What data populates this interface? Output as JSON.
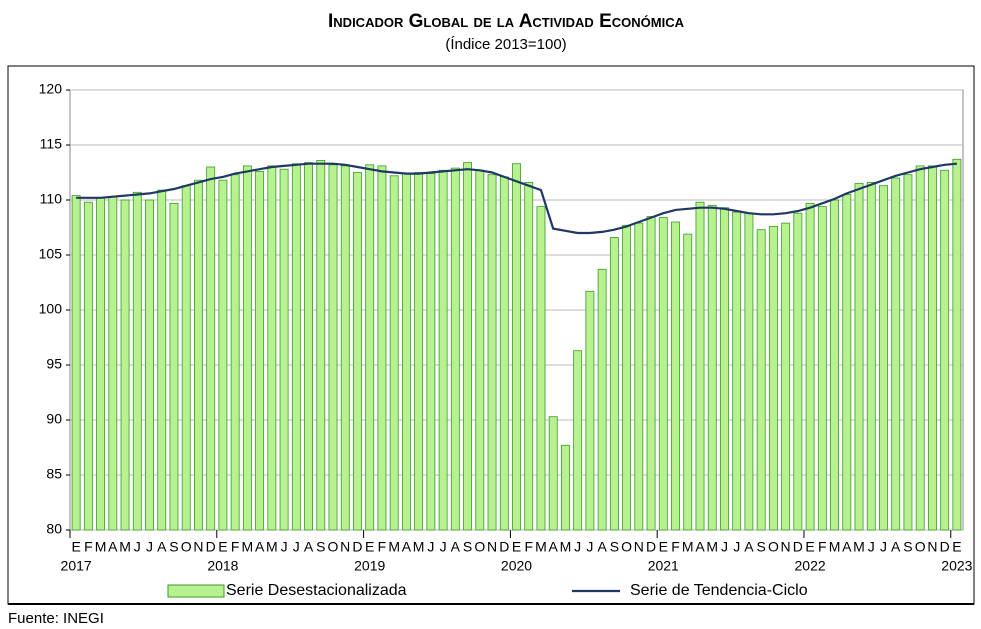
{
  "chart_data": {
    "type": "bar",
    "title": "Indicador Global de la Actividad Económica",
    "subtitle": "(Índice 2013=100)",
    "source": "Fuente: INEGI",
    "categories": [
      "E",
      "F",
      "M",
      "A",
      "M",
      "J",
      "J",
      "A",
      "S",
      "O",
      "N",
      "D",
      "E",
      "F",
      "M",
      "A",
      "M",
      "J",
      "J",
      "A",
      "S",
      "O",
      "N",
      "D",
      "E",
      "F",
      "M",
      "A",
      "M",
      "J",
      "J",
      "A",
      "S",
      "O",
      "N",
      "D",
      "E",
      "F",
      "M",
      "A",
      "M",
      "J",
      "J",
      "A",
      "S",
      "O",
      "N",
      "D",
      "E",
      "F",
      "M",
      "A",
      "M",
      "J",
      "J",
      "A",
      "S",
      "O",
      "N",
      "D",
      "E",
      "F",
      "M",
      "A",
      "M",
      "J",
      "J",
      "A",
      "S",
      "O",
      "N",
      "D",
      "E"
    ],
    "years": [
      "2017",
      "2018",
      "2019",
      "2020",
      "2021",
      "2022",
      "2023"
    ],
    "series": [
      {
        "name": "Serie Desestacionalizada",
        "type": "bar",
        "color": "#b8f290",
        "edge": "#3a9a2a",
        "values": [
          110.4,
          109.8,
          110.2,
          110.3,
          110.0,
          110.7,
          110.0,
          110.9,
          109.7,
          111.3,
          111.8,
          113.0,
          111.8,
          112.3,
          113.1,
          112.6,
          113.1,
          112.8,
          113.3,
          113.4,
          113.6,
          113.2,
          113.1,
          112.5,
          113.2,
          113.1,
          112.2,
          112.4,
          112.5,
          112.4,
          112.7,
          112.9,
          113.4,
          112.7,
          112.3,
          112.1,
          113.3,
          111.6,
          109.4,
          90.3,
          87.7,
          96.3,
          101.7,
          103.7,
          106.6,
          107.7,
          107.9,
          108.5,
          108.4,
          108.0,
          106.9,
          109.8,
          109.5,
          109.3,
          108.9,
          108.8,
          107.3,
          107.6,
          107.9,
          108.8,
          109.7,
          109.4,
          110.0,
          110.5,
          111.5,
          111.6,
          111.3,
          112.0,
          112.3,
          113.1,
          113.1,
          112.7,
          113.7
        ]
      },
      {
        "name": "Serie de Tendencia-Ciclo",
        "type": "line",
        "color": "#1f3864",
        "values": [
          110.2,
          110.2,
          110.2,
          110.3,
          110.4,
          110.5,
          110.6,
          110.8,
          111.0,
          111.3,
          111.6,
          111.9,
          112.1,
          112.4,
          112.6,
          112.8,
          113.0,
          113.1,
          113.2,
          113.3,
          113.3,
          113.3,
          113.2,
          113.0,
          112.8,
          112.6,
          112.5,
          112.4,
          112.4,
          112.5,
          112.6,
          112.7,
          112.8,
          112.7,
          112.5,
          112.1,
          111.7,
          111.3,
          110.9,
          107.4,
          107.2,
          107.0,
          107.0,
          107.1,
          107.3,
          107.6,
          108.0,
          108.4,
          108.8,
          109.1,
          109.2,
          109.3,
          109.3,
          109.2,
          109.0,
          108.8,
          108.7,
          108.7,
          108.8,
          109.0,
          109.3,
          109.7,
          110.1,
          110.6,
          111.0,
          111.4,
          111.8,
          112.2,
          112.5,
          112.8,
          113.0,
          113.2,
          113.3
        ]
      }
    ],
    "ylim": [
      80,
      120
    ],
    "yticks": [
      80,
      85,
      90,
      95,
      100,
      105,
      110,
      115,
      120
    ],
    "grid": true
  }
}
